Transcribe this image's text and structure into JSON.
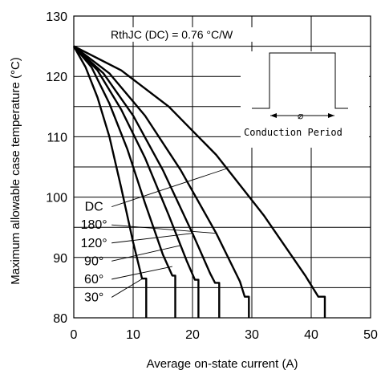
{
  "chart_data": {
    "type": "line",
    "xlabel": "Average on-state current (A)",
    "ylabel": "Maximum allowable case temperature (°C)",
    "xlim": [
      0,
      50
    ],
    "ylim": [
      80,
      130
    ],
    "xticks": [
      0,
      10,
      20,
      30,
      40,
      50
    ],
    "yticks": [
      80,
      90,
      100,
      110,
      120,
      130
    ],
    "grid": true,
    "annotation": "RthJC (DC) = 0.76 °C/W",
    "inset_label": "Conduction Period",
    "inset_symbol": "∅",
    "series": [
      {
        "name": "30°",
        "points": [
          [
            0,
            125
          ],
          [
            2,
            121.5
          ],
          [
            4,
            116.5
          ],
          [
            6,
            110
          ],
          [
            8,
            101.5
          ],
          [
            10,
            92.5
          ],
          [
            11.5,
            86.5
          ],
          [
            12.2,
            86.5
          ],
          [
            12.2,
            80
          ]
        ]
      },
      {
        "name": "60°",
        "points": [
          [
            0,
            125
          ],
          [
            3,
            121.5
          ],
          [
            6,
            115.5
          ],
          [
            9,
            108
          ],
          [
            12,
            99
          ],
          [
            15,
            90.5
          ],
          [
            16.6,
            87
          ],
          [
            17.1,
            87
          ],
          [
            17.1,
            80
          ]
        ]
      },
      {
        "name": "90°",
        "points": [
          [
            0,
            125
          ],
          [
            4,
            121
          ],
          [
            8,
            114.5
          ],
          [
            12,
            106.5
          ],
          [
            16,
            97
          ],
          [
            19,
            89.5
          ],
          [
            20.4,
            86.3
          ],
          [
            21,
            86.3
          ],
          [
            21,
            80
          ]
        ]
      },
      {
        "name": "120°",
        "points": [
          [
            0,
            125
          ],
          [
            5,
            120.5
          ],
          [
            10,
            113.5
          ],
          [
            15,
            104.5
          ],
          [
            20,
            94
          ],
          [
            23,
            87.3
          ],
          [
            23.8,
            85.8
          ],
          [
            24.5,
            85.8
          ],
          [
            24.5,
            80
          ]
        ]
      },
      {
        "name": "180°",
        "points": [
          [
            0,
            125
          ],
          [
            6,
            120.5
          ],
          [
            12,
            113.5
          ],
          [
            18,
            104.5
          ],
          [
            24,
            94
          ],
          [
            28,
            86
          ],
          [
            28.8,
            83.5
          ],
          [
            29.5,
            83.5
          ],
          [
            29.5,
            80
          ]
        ]
      },
      {
        "name": "DC",
        "points": [
          [
            0,
            125
          ],
          [
            8,
            121
          ],
          [
            16,
            115
          ],
          [
            24,
            107
          ],
          [
            32,
            97
          ],
          [
            39,
            87
          ],
          [
            41.2,
            83.5
          ],
          [
            42.3,
            83.5
          ],
          [
            42.3,
            80
          ]
        ]
      }
    ]
  }
}
